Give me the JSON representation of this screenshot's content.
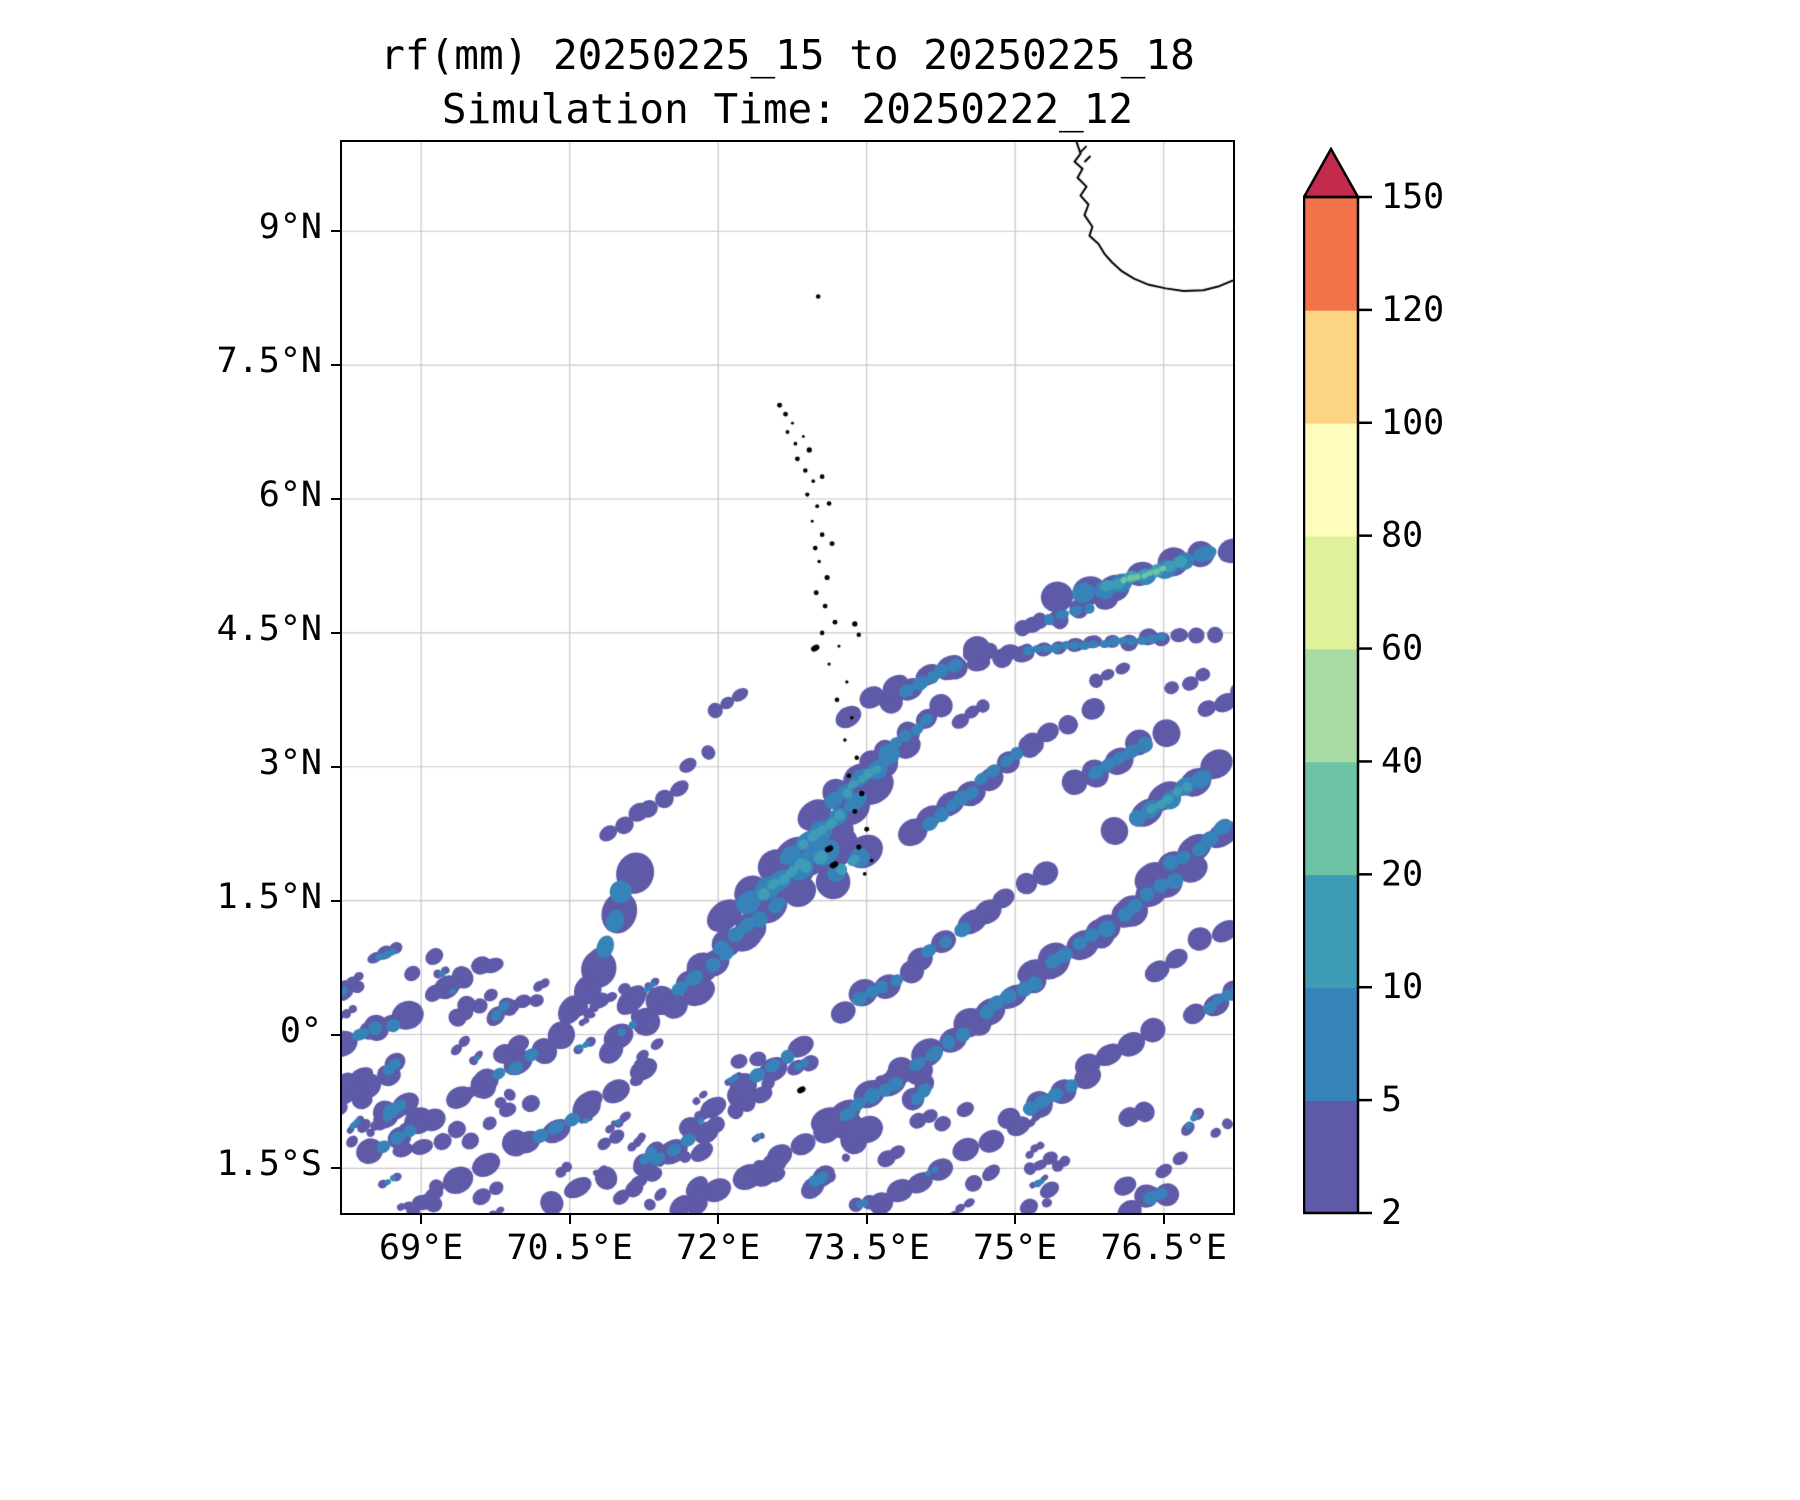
{
  "figure": {
    "title_line1": "rf(mm) 20250225_15 to 20250225_18",
    "title_line2": "Simulation Time: 20250222_12"
  },
  "chart_data": {
    "type": "filled_contour_map",
    "title": "rf(mm) 20250225_15 to 20250225_18",
    "subtitle": "Simulation Time: 20250222_12",
    "variable": "rf",
    "units": "mm",
    "map": {
      "lon_min": 68.2,
      "lon_max": 77.2,
      "lat_min": -2.0,
      "lat_max": 10.0
    },
    "grid_color": "#c8c8c8",
    "x_axis": {
      "ticks": [
        {
          "value": 69.0,
          "label": "69°E"
        },
        {
          "value": 70.5,
          "label": "70.5°E"
        },
        {
          "value": 72.0,
          "label": "72°E"
        },
        {
          "value": 73.5,
          "label": "73.5°E"
        },
        {
          "value": 75.0,
          "label": "75°E"
        },
        {
          "value": 76.5,
          "label": "76.5°E"
        }
      ]
    },
    "y_axis": {
      "ticks": [
        {
          "value": 9.0,
          "label": "9°N"
        },
        {
          "value": 7.5,
          "label": "7.5°N"
        },
        {
          "value": 6.0,
          "label": "6°N"
        },
        {
          "value": 4.5,
          "label": "4.5°N"
        },
        {
          "value": 3.0,
          "label": "3°N"
        },
        {
          "value": 1.5,
          "label": "1.5°N"
        },
        {
          "value": 0.0,
          "label": "0°"
        },
        {
          "value": -1.5,
          "label": "1.5°S"
        }
      ]
    },
    "colorbar": {
      "levels": [
        2,
        5,
        10,
        20,
        40,
        60,
        80,
        100,
        120,
        150
      ],
      "band_colors": [
        "#5e5aa7",
        "#3783b9",
        "#3f9cb6",
        "#6cc4a5",
        "#a8daa3",
        "#dff29b",
        "#fefdbe",
        "#fdd384",
        "#f2734a"
      ],
      "extend_color": "#c22b4c",
      "outline_color": "#000000"
    },
    "coastline": {
      "color": "#000000",
      "points": [
        [
          75.62,
          10.0
        ],
        [
          75.66,
          9.87
        ],
        [
          75.6,
          9.78
        ],
        [
          75.68,
          9.7
        ],
        [
          75.63,
          9.6
        ],
        [
          75.72,
          9.5
        ],
        [
          75.66,
          9.4
        ],
        [
          75.74,
          9.3
        ],
        [
          75.7,
          9.18
        ],
        [
          75.78,
          9.05
        ],
        [
          75.75,
          8.95
        ],
        [
          75.84,
          8.86
        ],
        [
          75.9,
          8.75
        ],
        [
          75.98,
          8.65
        ],
        [
          76.08,
          8.55
        ],
        [
          76.2,
          8.47
        ],
        [
          76.35,
          8.4
        ],
        [
          76.52,
          8.36
        ],
        [
          76.7,
          8.33
        ],
        [
          76.9,
          8.34
        ],
        [
          77.05,
          8.38
        ],
        [
          77.2,
          8.45
        ]
      ],
      "islets": [
        [
          75.69,
          9.92
        ],
        [
          75.73,
          9.81
        ]
      ]
    },
    "islands": {
      "dots": [
        [
          73.01,
          8.27
        ],
        [
          72.62,
          7.05
        ],
        [
          72.68,
          6.95
        ],
        [
          72.75,
          6.85
        ],
        [
          72.7,
          6.75
        ],
        [
          72.78,
          6.62
        ],
        [
          72.86,
          6.7
        ],
        [
          72.92,
          6.55
        ],
        [
          72.8,
          6.45
        ],
        [
          72.88,
          6.32
        ],
        [
          72.96,
          6.2
        ],
        [
          73.05,
          6.25
        ],
        [
          72.9,
          6.05
        ],
        [
          73.0,
          5.92
        ],
        [
          73.12,
          5.95
        ],
        [
          72.95,
          5.75
        ],
        [
          73.05,
          5.6
        ],
        [
          72.98,
          5.45
        ],
        [
          73.15,
          5.5
        ],
        [
          73.02,
          5.3
        ],
        [
          73.1,
          5.12
        ],
        [
          72.99,
          4.95
        ],
        [
          73.08,
          4.8
        ],
        [
          73.18,
          4.62
        ],
        [
          73.38,
          4.6
        ],
        [
          73.05,
          4.5
        ],
        [
          73.42,
          4.48
        ],
        [
          73.22,
          4.35
        ],
        [
          73.12,
          4.15
        ],
        [
          73.3,
          3.95
        ],
        [
          73.2,
          3.75
        ],
        [
          73.35,
          3.55
        ],
        [
          73.28,
          3.3
        ],
        [
          73.4,
          3.1
        ],
        [
          73.32,
          2.9
        ],
        [
          73.45,
          2.7
        ],
        [
          73.38,
          2.5
        ],
        [
          73.5,
          2.3
        ],
        [
          73.42,
          2.1
        ],
        [
          73.55,
          1.95
        ],
        [
          73.48,
          1.8
        ]
      ],
      "marks": [
        [
          73.12,
          2.08
        ],
        [
          73.17,
          1.9
        ],
        [
          72.98,
          4.33
        ],
        [
          72.84,
          -0.62
        ]
      ]
    },
    "rainfall": {
      "streak_format": [
        "lon",
        "lat",
        "length_deg",
        "width_deg",
        "angle_deg",
        "max_level"
      ],
      "streaks": [
        [
          76.3,
          5.15,
          2.1,
          0.3,
          17,
          40
        ],
        [
          75.55,
          4.72,
          0.9,
          0.2,
          15,
          10
        ],
        [
          75.8,
          4.38,
          2.6,
          0.17,
          5,
          10
        ],
        [
          74.75,
          4.2,
          0.9,
          0.22,
          12,
          5
        ],
        [
          74.15,
          4.0,
          1.2,
          0.26,
          30,
          10
        ],
        [
          73.55,
          3.75,
          0.8,
          0.24,
          32,
          5
        ],
        [
          73.9,
          3.35,
          1.1,
          0.24,
          38,
          10
        ],
        [
          73.45,
          2.85,
          1.4,
          0.3,
          38,
          20
        ],
        [
          73.05,
          2.3,
          1.6,
          0.34,
          38,
          20
        ],
        [
          72.65,
          1.75,
          1.7,
          0.36,
          38,
          20
        ],
        [
          72.95,
          1.95,
          0.85,
          0.4,
          35,
          20
        ],
        [
          73.3,
          1.9,
          0.7,
          0.35,
          35,
          20
        ],
        [
          72.3,
          1.2,
          1.5,
          0.32,
          36,
          10
        ],
        [
          71.85,
          0.7,
          1.3,
          0.3,
          34,
          10
        ],
        [
          71.4,
          0.25,
          1.2,
          0.28,
          30,
          5
        ],
        [
          70.95,
          1.3,
          1.4,
          0.4,
          72,
          10
        ],
        [
          70.6,
          0.4,
          1.0,
          0.26,
          58,
          5
        ],
        [
          74.35,
          2.55,
          1.2,
          0.26,
          35,
          10
        ],
        [
          74.85,
          3.0,
          1.0,
          0.24,
          35,
          10
        ],
        [
          75.45,
          3.42,
          0.9,
          0.22,
          30,
          5
        ],
        [
          76.05,
          3.1,
          1.3,
          0.28,
          32,
          10
        ],
        [
          76.55,
          2.65,
          1.5,
          0.3,
          34,
          20
        ],
        [
          76.85,
          2.1,
          1.4,
          0.3,
          34,
          10
        ],
        [
          76.35,
          1.55,
          1.3,
          0.28,
          34,
          10
        ],
        [
          75.65,
          1.0,
          1.4,
          0.3,
          32,
          10
        ],
        [
          75.0,
          1.6,
          0.9,
          0.24,
          32,
          5
        ],
        [
          74.95,
          0.42,
          1.3,
          0.28,
          32,
          10
        ],
        [
          74.3,
          1.05,
          0.9,
          0.26,
          32,
          10
        ],
        [
          74.25,
          -0.15,
          1.2,
          0.28,
          32,
          10
        ],
        [
          73.6,
          0.5,
          1.0,
          0.26,
          30,
          10
        ],
        [
          73.55,
          -0.7,
          1.3,
          0.28,
          30,
          10
        ],
        [
          72.85,
          -1.25,
          1.2,
          0.26,
          30,
          5
        ],
        [
          72.15,
          -1.7,
          1.1,
          0.26,
          28,
          5
        ],
        [
          77.1,
          3.75,
          0.6,
          0.2,
          30,
          5
        ],
        [
          76.75,
          0.95,
          1.0,
          0.24,
          32,
          5
        ],
        [
          77.1,
          0.4,
          0.8,
          0.22,
          30,
          10
        ],
        [
          76.05,
          -0.15,
          1.0,
          0.24,
          30,
          5
        ],
        [
          75.35,
          -0.7,
          1.1,
          0.26,
          30,
          10
        ],
        [
          74.65,
          -1.25,
          1.0,
          0.24,
          28,
          5
        ],
        [
          73.95,
          -1.72,
          0.9,
          0.24,
          26,
          5
        ],
        [
          72.1,
          3.72,
          0.4,
          0.15,
          32,
          5
        ],
        [
          71.8,
          3.1,
          0.35,
          0.15,
          32,
          5
        ],
        [
          71.45,
          2.62,
          0.5,
          0.18,
          35,
          5
        ],
        [
          71.05,
          2.35,
          0.5,
          0.18,
          35,
          5
        ],
        [
          76.75,
          3.95,
          0.45,
          0.14,
          20,
          5
        ],
        [
          75.25,
          4.62,
          0.5,
          0.16,
          15,
          5
        ],
        [
          74.55,
          3.6,
          0.4,
          0.15,
          30,
          5
        ],
        [
          75.95,
          4.05,
          0.4,
          0.14,
          25,
          5
        ],
        [
          68.55,
          0.05,
          0.9,
          0.28,
          20,
          10
        ],
        [
          68.45,
          -0.55,
          0.7,
          0.26,
          25,
          5
        ],
        [
          68.75,
          -1.15,
          0.8,
          0.26,
          30,
          10
        ],
        [
          69.35,
          -0.75,
          0.8,
          0.26,
          30,
          5
        ],
        [
          69.95,
          -0.35,
          0.9,
          0.26,
          32,
          10
        ],
        [
          69.65,
          -1.45,
          0.9,
          0.26,
          30,
          5
        ],
        [
          70.35,
          -1.05,
          0.9,
          0.26,
          30,
          10
        ],
        [
          70.95,
          -0.6,
          0.9,
          0.26,
          30,
          5
        ],
        [
          71.55,
          -1.3,
          0.9,
          0.26,
          30,
          10
        ],
        [
          70.6,
          -1.75,
          0.8,
          0.24,
          28,
          5
        ],
        [
          72.55,
          -0.35,
          0.9,
          0.26,
          30,
          10
        ],
        [
          71.95,
          -0.85,
          0.8,
          0.24,
          30,
          5
        ]
      ],
      "scatter_regions": [
        {
          "lon": [
            68.2,
            71.6
          ],
          "lat": [
            -2.0,
            0.6
          ],
          "count": 60,
          "core_fraction": 0.2
        },
        {
          "lon": [
            68.2,
            69.7
          ],
          "lat": [
            0.3,
            1.0
          ],
          "count": 10,
          "core_fraction": 0.1
        },
        {
          "lon": [
            71.6,
            74.2
          ],
          "lat": [
            -2.0,
            -0.2
          ],
          "count": 28,
          "core_fraction": 0.2
        },
        {
          "lon": [
            74.2,
            77.2
          ],
          "lat": [
            -2.0,
            -0.8
          ],
          "count": 18,
          "core_fraction": 0.15
        }
      ]
    }
  }
}
